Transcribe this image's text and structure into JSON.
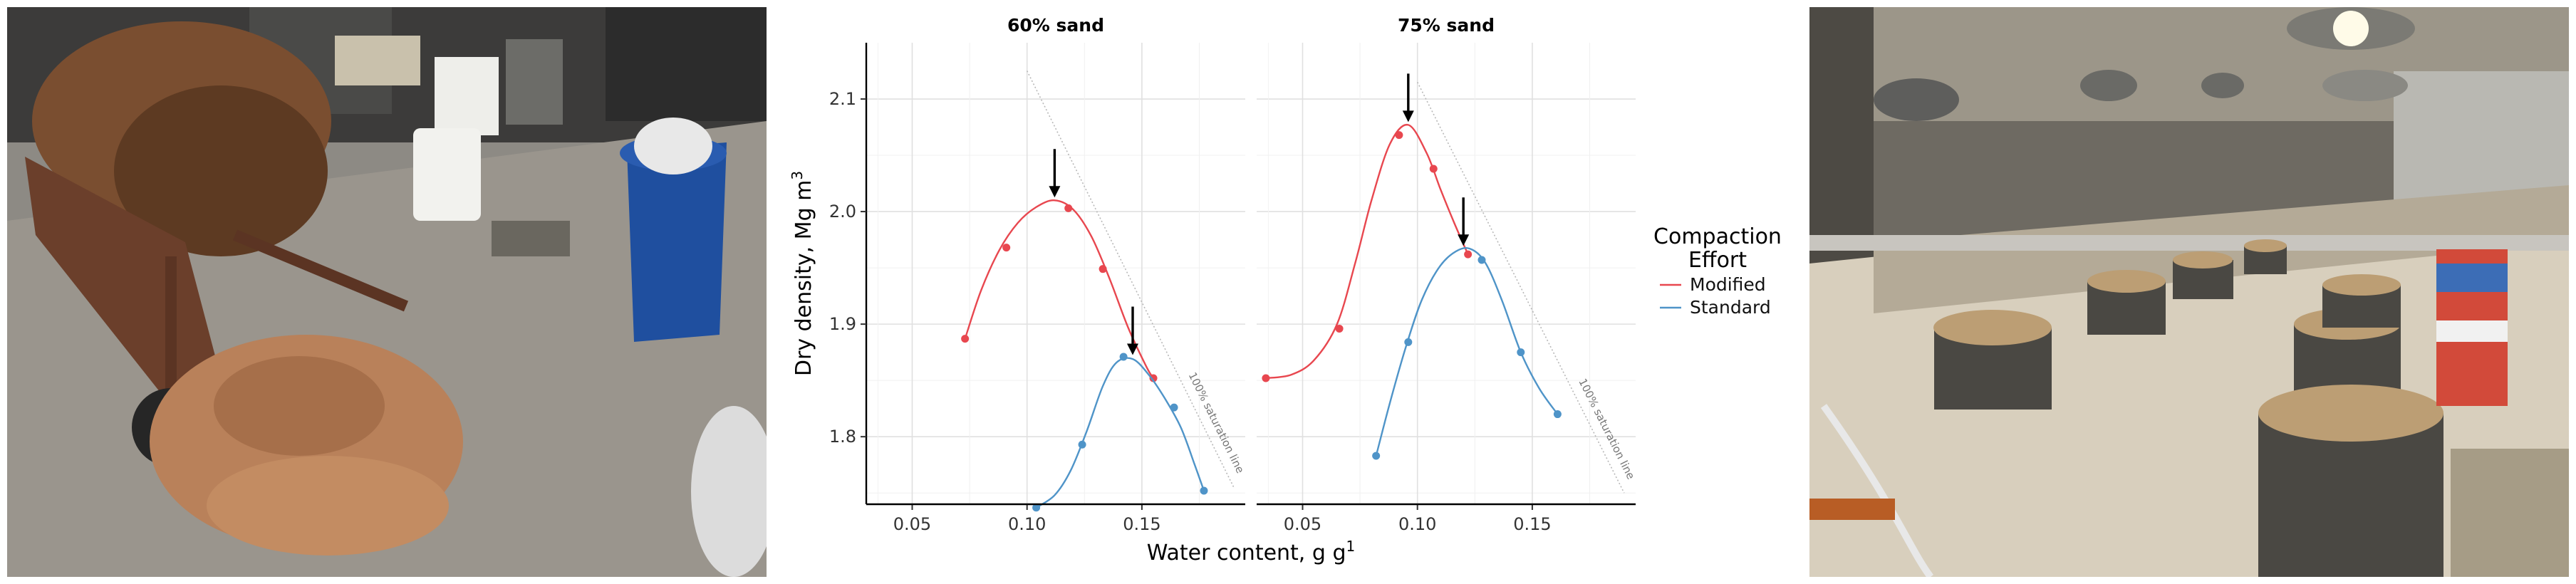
{
  "chart_data": {
    "type": "line",
    "xlabel": "Water content, g g",
    "xlabel_sup": "1",
    "ylabel": "Dry density, Mg m",
    "ylabel_sup": "3",
    "xlim": [
      0.03,
      0.195
    ],
    "ylim": [
      1.74,
      2.15
    ],
    "x_ticks": [
      0.05,
      0.1,
      0.15
    ],
    "x_tick_labels": [
      "0.05",
      "0.10",
      "0.15"
    ],
    "y_ticks": [
      1.8,
      1.9,
      2.0,
      2.1
    ],
    "y_tick_labels": [
      "1.8",
      "1.9",
      "2.0",
      "2.1"
    ],
    "grid": true,
    "legend_title": "Compaction Effort",
    "legend_position": "right",
    "series_colors": {
      "Modified": "#e8474f",
      "Standard": "#4f94c8"
    },
    "panels": [
      {
        "title": "60% sand",
        "saturation_label": "100% saturation line",
        "saturation_line": [
          [
            0.1,
            2.125
          ],
          [
            0.19,
            1.755
          ]
        ],
        "series": [
          {
            "name": "Modified",
            "points": [
              [
                0.073,
                1.887
              ],
              [
                0.091,
                1.968
              ],
              [
                0.118,
                2.003
              ],
              [
                0.133,
                1.949
              ],
              [
                0.155,
                1.852
              ]
            ],
            "curve": [
              [
                0.073,
                1.887
              ],
              [
                0.08,
                1.93
              ],
              [
                0.088,
                1.966
              ],
              [
                0.096,
                1.99
              ],
              [
                0.104,
                2.004
              ],
              [
                0.112,
                2.01
              ],
              [
                0.12,
                2.002
              ],
              [
                0.128,
                1.978
              ],
              [
                0.136,
                1.94
              ],
              [
                0.144,
                1.897
              ],
              [
                0.152,
                1.862
              ],
              [
                0.155,
                1.852
              ]
            ],
            "optimum": [
              0.112,
              2.01
            ]
          },
          {
            "name": "Standard",
            "points": [
              [
                0.104,
                1.737
              ],
              [
                0.124,
                1.793
              ],
              [
                0.142,
                1.871
              ],
              [
                0.164,
                1.826
              ],
              [
                0.177,
                1.752
              ]
            ],
            "curve": [
              [
                0.104,
                1.737
              ],
              [
                0.112,
                1.748
              ],
              [
                0.119,
                1.77
              ],
              [
                0.126,
                1.805
              ],
              [
                0.133,
                1.845
              ],
              [
                0.139,
                1.866
              ],
              [
                0.146,
                1.869
              ],
              [
                0.153,
                1.855
              ],
              [
                0.16,
                1.834
              ],
              [
                0.167,
                1.808
              ],
              [
                0.173,
                1.775
              ],
              [
                0.177,
                1.752
              ]
            ],
            "optimum": [
              0.146,
              1.87
            ]
          }
        ]
      },
      {
        "title": "75% sand",
        "saturation_label": "100% saturation line",
        "saturation_line": [
          [
            0.1,
            2.115
          ],
          [
            0.19,
            1.75
          ]
        ],
        "series": [
          {
            "name": "Modified",
            "points": [
              [
                0.034,
                1.852
              ],
              [
                0.066,
                1.896
              ],
              [
                0.092,
                2.068
              ],
              [
                0.107,
                2.038
              ],
              [
                0.122,
                1.962
              ]
            ],
            "curve": [
              [
                0.034,
                1.852
              ],
              [
                0.045,
                1.855
              ],
              [
                0.055,
                1.868
              ],
              [
                0.065,
                1.9
              ],
              [
                0.073,
                1.955
              ],
              [
                0.08,
                2.01
              ],
              [
                0.088,
                2.06
              ],
              [
                0.096,
                2.077
              ],
              [
                0.104,
                2.052
              ],
              [
                0.11,
                2.02
              ],
              [
                0.116,
                1.99
              ],
              [
                0.122,
                1.962
              ]
            ],
            "optimum": [
              0.096,
              2.077
            ]
          },
          {
            "name": "Standard",
            "points": [
              [
                0.082,
                1.783
              ],
              [
                0.096,
                1.884
              ],
              [
                0.128,
                1.957
              ],
              [
                0.145,
                1.875
              ],
              [
                0.161,
                1.82
              ]
            ],
            "curve": [
              [
                0.082,
                1.783
              ],
              [
                0.088,
                1.83
              ],
              [
                0.095,
                1.88
              ],
              [
                0.102,
                1.922
              ],
              [
                0.11,
                1.952
              ],
              [
                0.118,
                1.966
              ],
              [
                0.124,
                1.966
              ],
              [
                0.13,
                1.953
              ],
              [
                0.137,
                1.92
              ],
              [
                0.145,
                1.875
              ],
              [
                0.153,
                1.843
              ],
              [
                0.161,
                1.82
              ]
            ],
            "optimum": [
              0.12,
              1.967
            ]
          }
        ]
      }
    ]
  }
}
